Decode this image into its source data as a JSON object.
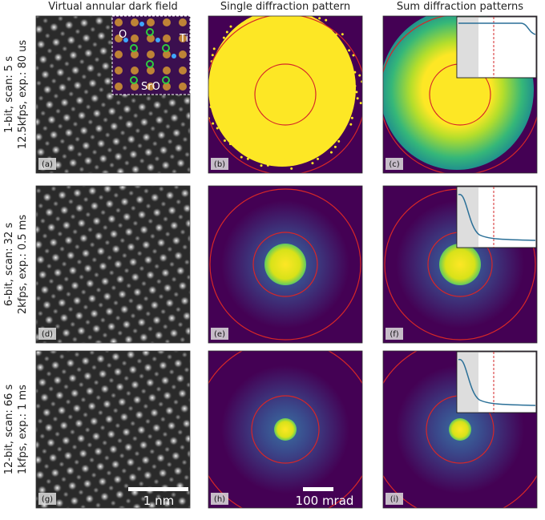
{
  "columns": [
    "Virtual annular dark field",
    "Single diffraction pattern",
    "Sum diffraction patterns"
  ],
  "rows": [
    {
      "label_lines": [
        "1-bit, scan: 5 s",
        "12.5kfps, exp.: 80 us"
      ],
      "panels": [
        "(a)",
        "(b)",
        "(c)"
      ]
    },
    {
      "label_lines": [
        "6-bit, scan: 32 s",
        "2kfps, exp.: 0.5 ms"
      ],
      "panels": [
        "(d)",
        "(e)",
        "(f)"
      ]
    },
    {
      "label_lines": [
        "12-bit, scan: 66 s",
        "1kfps, exp.: 1 ms"
      ],
      "panels": [
        "(g)",
        "(h)",
        "(i)"
      ]
    }
  ],
  "inset_labels": [
    "O",
    "Ti",
    "SrO"
  ],
  "scale_bars": [
    "1 nm",
    "100 mrad"
  ]
}
